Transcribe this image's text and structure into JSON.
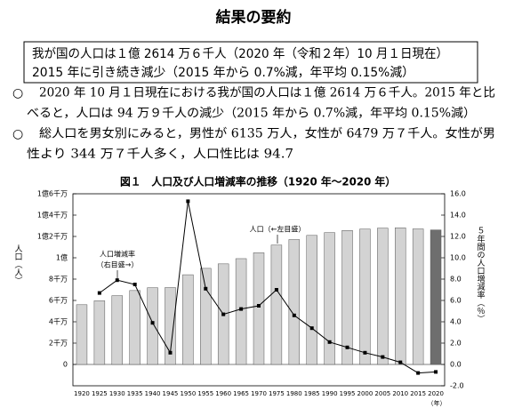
{
  "header": {
    "title": "結果の要約"
  },
  "summary_box": {
    "lines": [
      "我が国の人口は１億 2614 万６千人（2020 年（令和２年）10 月１日現在）",
      "2015 年に引き続き減少（2015 年から 0.7%減，年平均 0.15%減）"
    ]
  },
  "bullets": {
    "marker": "○",
    "items": [
      [
        "2020 年 10 月１日現在における我が国の人口は１億 2614 万６千人。2015 年と比",
        "べると，人口は 94 万９千人の減少（2015 年から 0.7%減，年平均 0.15%減）"
      ],
      [
        "総人口を男女別にみると，男性が 6135 万人，女性が 6479 万７千人。女性が男",
        "性より 344 万７千人多く，人口性比は 94.7"
      ]
    ]
  },
  "chart_data": {
    "type": "bar_line",
    "title": "図１　人口及び人口増減率の推移（1920 年～2020 年）",
    "y_label": "人口（人）",
    "y2_label": "５年間の人口増減率（％）",
    "x_unit": "（年）",
    "annotations": [
      "人口増減率",
      "（右目盛→）",
      "人口（←左目盛）"
    ],
    "categories": [
      "1920",
      "1925",
      "1930",
      "1935",
      "1940",
      "1945",
      "1950",
      "1955",
      "1960",
      "1965",
      "1970",
      "1975",
      "1980",
      "1985",
      "1990",
      "1995",
      "2000",
      "2005",
      "2010",
      "2015",
      "2020"
    ],
    "series": [
      {
        "name": "人口",
        "colors": [
          "#d3d3d3",
          "#d3d3d3",
          "#d3d3d3",
          "#d3d3d3",
          "#d3d3d3",
          "#d3d3d3",
          "#d3d3d3",
          "#d3d3d3",
          "#d3d3d3",
          "#d3d3d3",
          "#d3d3d3",
          "#d3d3d3",
          "#d3d3d3",
          "#d3d3d3",
          "#d3d3d3",
          "#d3d3d3",
          "#d3d3d3",
          "#d3d3d3",
          "#d3d3d3",
          "#d3d3d3",
          "#6e6e6e"
        ],
        "values": [
          56000000,
          59700000,
          64500000,
          69300000,
          71900000,
          72100000,
          84100000,
          90100000,
          94300000,
          99200000,
          104700000,
          111900000,
          117100000,
          121000000,
          123600000,
          125600000,
          126900000,
          127800000,
          128100000,
          127100000,
          126100000
        ]
      },
      {
        "name": "人口増減率",
        "axis": "y2",
        "color": "#000000",
        "values": [
          null,
          6.7,
          7.9,
          7.5,
          3.9,
          1.1,
          15.3,
          7.1,
          4.7,
          5.2,
          5.5,
          7.0,
          4.6,
          3.4,
          2.1,
          1.6,
          1.1,
          0.7,
          0.2,
          -0.8,
          -0.7
        ]
      }
    ],
    "ylim": [
      0,
      160000000
    ],
    "yticks": [
      0,
      {
        "value": 20000000,
        "label": "2千万"
      },
      {
        "value": 40000000,
        "label": "4千万"
      },
      {
        "value": 60000000,
        "label": "6千万"
      },
      {
        "value": 80000000,
        "label": "8千万"
      },
      {
        "value": 100000000,
        "label": "1億"
      },
      {
        "value": 120000000,
        "label": "1億2千万"
      },
      {
        "value": 140000000,
        "label": "1億4千万"
      },
      {
        "value": 160000000,
        "label": "1億6千万"
      }
    ],
    "y2lim": [
      -2,
      16
    ],
    "y2ticks": [
      {
        "value": -2,
        "label": "-2.0"
      },
      {
        "value": 0,
        "label": "0.0"
      },
      {
        "value": 2,
        "label": "2.0"
      },
      {
        "value": 4,
        "label": "4.0"
      },
      {
        "value": 6,
        "label": "6.0"
      },
      {
        "value": 8,
        "label": "8.0"
      },
      {
        "value": 10,
        "label": "10.0"
      },
      {
        "value": 12,
        "label": "12.0"
      },
      {
        "value": 14,
        "label": "14.0"
      },
      {
        "value": 16,
        "label": "16.0"
      }
    ]
  }
}
